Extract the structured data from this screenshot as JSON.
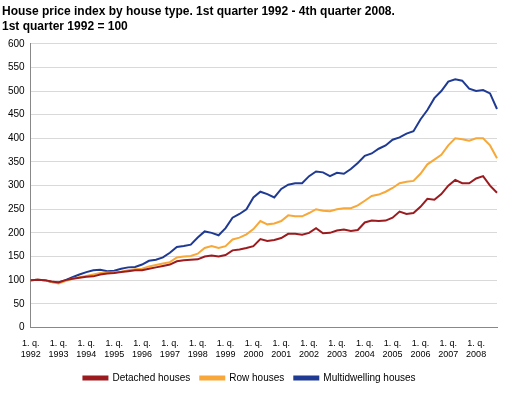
{
  "chart_data": {
    "type": "line",
    "title": "House price index by house type. 1st quarter 1992 - 4th quarter 2008.",
    "subtitle": "1st quarter 1992 = 100",
    "categories": [
      "1. q. 1992",
      null,
      null,
      null,
      "1. q. 1993",
      null,
      null,
      null,
      "1. q. 1994",
      null,
      null,
      null,
      "1. q. 1995",
      null,
      null,
      null,
      "1. q. 1996",
      null,
      null,
      null,
      "1. q. 1997",
      null,
      null,
      null,
      "1. q. 1998",
      null,
      null,
      null,
      "1. q. 1999",
      null,
      null,
      null,
      "1. q. 2000",
      null,
      null,
      null,
      "1. q. 2001",
      null,
      null,
      null,
      "1. q. 2002",
      null,
      null,
      null,
      "1. q. 2003",
      null,
      null,
      null,
      "1. q. 2004",
      null,
      null,
      null,
      "1. q. 2005",
      null,
      null,
      null,
      "1. q. 2006",
      null,
      null,
      null,
      "1. q. 2007",
      null,
      null,
      null,
      "1. q. 2008",
      null,
      null,
      null
    ],
    "series": [
      {
        "name": "Detached houses",
        "color": "#9b1b1f",
        "values": [
          100,
          101,
          100,
          97,
          95,
          100,
          103,
          105,
          107,
          108,
          112,
          114,
          115,
          117,
          119,
          121,
          121,
          124,
          127,
          130,
          133,
          140,
          142,
          143,
          144,
          150,
          152,
          150,
          153,
          163,
          165,
          168,
          172,
          187,
          183,
          185,
          189,
          198,
          198,
          196,
          200,
          210,
          199,
          200,
          205,
          207,
          204,
          206,
          222,
          226,
          225,
          226,
          232,
          245,
          240,
          242,
          255,
          272,
          270,
          282,
          300,
          312,
          305,
          305,
          315,
          320,
          300,
          285
        ]
      },
      {
        "name": "Row houses",
        "color": "#f7a839",
        "values": [
          100,
          101,
          100,
          96,
          93,
          98,
          103,
          106,
          109,
          112,
          115,
          116,
          116,
          118,
          121,
          123,
          124,
          129,
          132,
          135,
          138,
          148,
          150,
          151,
          156,
          168,
          172,
          168,
          172,
          186,
          190,
          197,
          208,
          225,
          218,
          220,
          225,
          237,
          235,
          235,
          242,
          250,
          247,
          246,
          250,
          252,
          252,
          258,
          268,
          278,
          281,
          287,
          295,
          305,
          308,
          310,
          325,
          345,
          355,
          365,
          385,
          400,
          398,
          395,
          400,
          400,
          385,
          358
        ]
      },
      {
        "name": "Multidwelling houses",
        "color": "#1f3a93",
        "values": [
          100,
          101,
          100,
          96,
          95,
          100,
          106,
          112,
          117,
          121,
          122,
          119,
          120,
          124,
          127,
          128,
          133,
          141,
          143,
          148,
          158,
          170,
          172,
          175,
          190,
          203,
          200,
          195,
          210,
          232,
          240,
          250,
          275,
          287,
          282,
          275,
          293,
          302,
          305,
          305,
          320,
          330,
          328,
          320,
          327,
          325,
          335,
          348,
          363,
          368,
          378,
          385,
          397,
          402,
          410,
          415,
          440,
          460,
          485,
          500,
          520,
          525,
          522,
          505,
          500,
          502,
          495,
          462
        ]
      }
    ],
    "ylim": [
      0,
      600
    ],
    "yticks": [
      0,
      50,
      100,
      150,
      200,
      250,
      300,
      350,
      400,
      450,
      500,
      550,
      600
    ],
    "grid": true,
    "legend": "bottom"
  }
}
